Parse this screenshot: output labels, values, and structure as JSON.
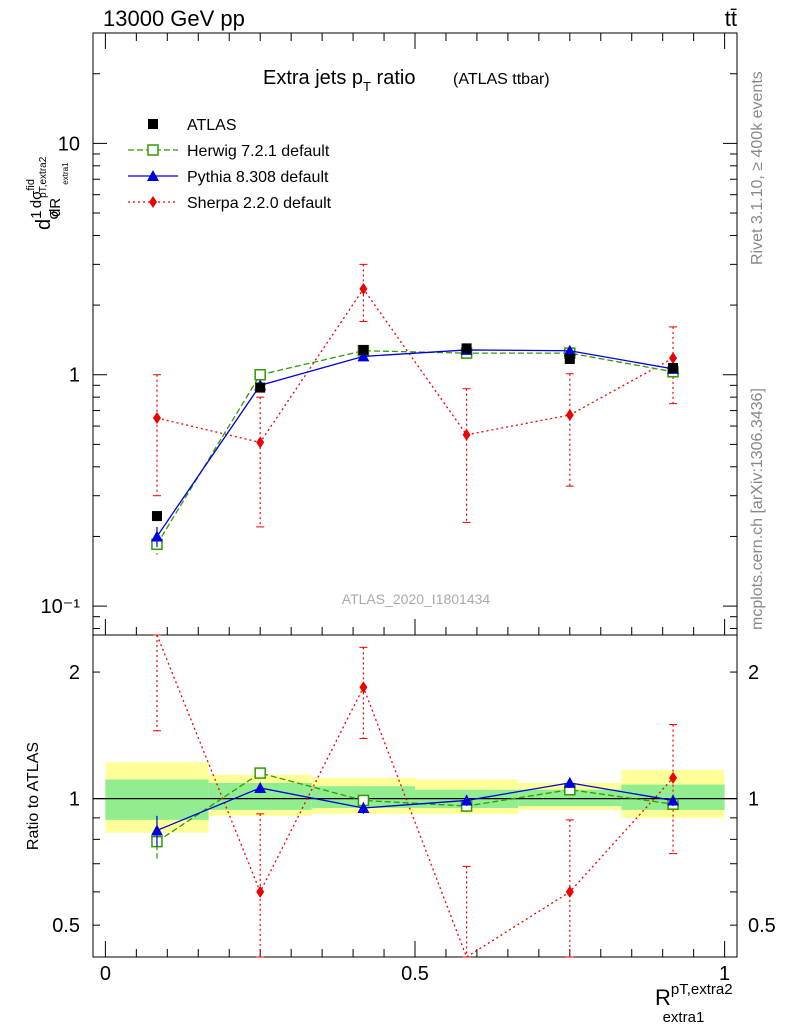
{
  "header": {
    "left_label": "13000 GeV pp",
    "right_label": "tt̄",
    "side_label_top": "Rivet 3.1.10, ≥ 400k events",
    "side_label_bottom": "mcplots.cern.ch [arXiv:1306.3436]",
    "watermark": "ATLAS_2020_I1801434"
  },
  "chart_data": [
    {
      "type": "line",
      "title": "Extra jets p",
      "title_sub": "T",
      "title_suffix": " ratio",
      "subtitle": "(ATLAS ttbar)",
      "ylabel_main": "d",
      "ylabel_parts": [
        "1",
        "σ",
        "dσ",
        "fid",
        "dR",
        "pT,extra2",
        "extra1"
      ],
      "yscale": "log",
      "ylim": [
        0.075,
        30
      ],
      "xlim": [
        -0.02,
        1.02
      ],
      "yticks": [
        {
          "v": 0.1,
          "label": "10⁻¹"
        },
        {
          "v": 1,
          "label": "1"
        },
        {
          "v": 10,
          "label": "10"
        }
      ],
      "x": [
        0.0833,
        0.25,
        0.4167,
        0.5833,
        0.75,
        0.9167
      ],
      "series": [
        {
          "name": "ATLAS",
          "color": "#000000",
          "marker": "square-filled",
          "values": [
            0.245,
            0.88,
            1.28,
            1.3,
            1.17,
            1.07
          ],
          "err": [
            0.012,
            0.04,
            0.05,
            0.05,
            0.05,
            0.05
          ]
        },
        {
          "name": "Herwig 7.2.1 default",
          "color": "#339900",
          "marker": "square-open",
          "dash": "6,3",
          "values": [
            0.185,
            1.0,
            1.27,
            1.24,
            1.24,
            1.03
          ],
          "err": [
            0.018,
            0.04,
            0.05,
            0.05,
            0.05,
            0.05
          ]
        },
        {
          "name": "Pythia 8.308 default",
          "color": "#0000dd",
          "marker": "triangle-filled",
          "values": [
            0.2,
            0.9,
            1.2,
            1.28,
            1.27,
            1.06
          ],
          "err": [
            0.02,
            0.04,
            0.05,
            0.05,
            0.05,
            0.05
          ]
        },
        {
          "name": "Sherpa 2.2.0 default",
          "color": "#ee0000",
          "marker": "diamond-filled",
          "dash": "2,3",
          "values": [
            0.65,
            0.51,
            2.35,
            0.55,
            0.67,
            1.18
          ],
          "err": [
            0.35,
            0.29,
            0.65,
            0.32,
            0.34,
            0.43
          ]
        }
      ]
    },
    {
      "type": "line",
      "title": "",
      "ylabel": "Ratio to ATLAS",
      "xlabel": "R",
      "xlabel_sup": "pT,extra2",
      "xlabel_sub": "extra1",
      "yscale": "log",
      "ylim": [
        0.42,
        2.45
      ],
      "xlim": [
        -0.02,
        1.02
      ],
      "yticks": [
        {
          "v": 0.5,
          "label": "0.5"
        },
        {
          "v": 1,
          "label": "1"
        },
        {
          "v": 2,
          "label": "2"
        }
      ],
      "xticks": [
        {
          "v": 0,
          "label": "0"
        },
        {
          "v": 0.5,
          "label": "0.5"
        },
        {
          "v": 1,
          "label": "1"
        }
      ],
      "bands": {
        "edges": [
          0,
          0.1667,
          0.3333,
          0.5,
          0.6667,
          0.8333,
          1.0
        ],
        "green": [
          [
            0.89,
            1.11
          ],
          [
            0.94,
            1.09
          ],
          [
            0.95,
            1.07
          ],
          [
            0.95,
            1.05
          ],
          [
            0.96,
            1.05
          ],
          [
            0.94,
            1.08
          ]
        ],
        "yellow": [
          [
            0.83,
            1.22
          ],
          [
            0.91,
            1.14
          ],
          [
            0.92,
            1.12
          ],
          [
            0.92,
            1.11
          ],
          [
            0.94,
            1.09
          ],
          [
            0.9,
            1.17
          ]
        ]
      },
      "x": [
        0.0833,
        0.25,
        0.4167,
        0.5833,
        0.75,
        0.9167
      ],
      "series": [
        {
          "name": "Herwig 7.2.1 default",
          "values": [
            0.79,
            1.15,
            0.99,
            0.96,
            1.05,
            0.97
          ],
          "err": [
            0.07,
            0.03,
            0.03,
            0.03,
            0.03,
            0.03
          ]
        },
        {
          "name": "Pythia 8.308 default",
          "values": [
            0.84,
            1.06,
            0.95,
            0.99,
            1.09,
            0.99
          ],
          "err": [
            0.07,
            0.03,
            0.03,
            0.03,
            0.03,
            0.03
          ]
        },
        {
          "name": "Sherpa 2.2.0 default",
          "values": [
            2.65,
            0.6,
            1.84,
            0.37,
            0.6,
            1.12
          ],
          "err": [
            1.2,
            0.32,
            0.45,
            0.32,
            0.29,
            0.38
          ]
        }
      ]
    }
  ]
}
